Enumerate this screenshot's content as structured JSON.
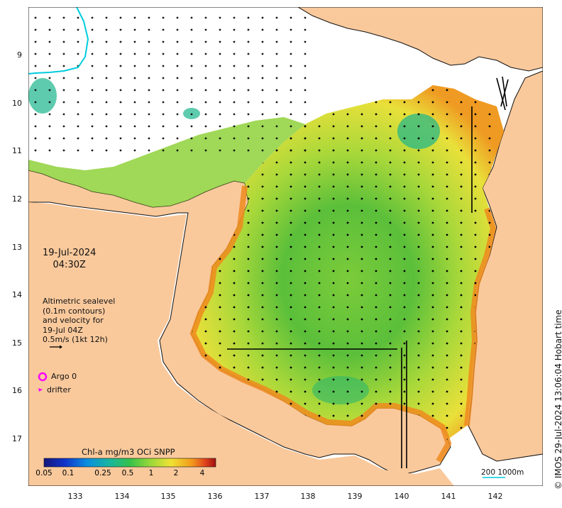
{
  "map": {
    "date": "19-Jul-2024",
    "time": "04:30Z",
    "legend_lines": [
      "Altimetric sealevel",
      "(0.1m contours)",
      "and velocity for",
      "19-Jul 04Z",
      "0.5m/s (1kt 12h)"
    ],
    "argo_label": "Argo 0",
    "drifter_label": "drifter",
    "credit": "© IMOS 29-Jul-2024 13:06:04 Hobart time",
    "colorbar": {
      "title": "Chl-a mg/m3 OCi SNPP",
      "ticks": [
        "0.05",
        "0.1",
        "0.25",
        "0.5",
        "1",
        "2",
        "4"
      ]
    },
    "scale_label": "200  1000m",
    "lat_ticks": [
      "9",
      "10",
      "11",
      "12",
      "13",
      "14",
      "15",
      "16",
      "17"
    ],
    "lon_ticks": [
      "133",
      "134",
      "135",
      "136",
      "137",
      "138",
      "139",
      "140",
      "141",
      "142"
    ],
    "colors": {
      "land": "#f9c99c",
      "argo_marker": "#ff00ff",
      "coast": "#111111",
      "contour_200m": "#00ccdd"
    }
  }
}
